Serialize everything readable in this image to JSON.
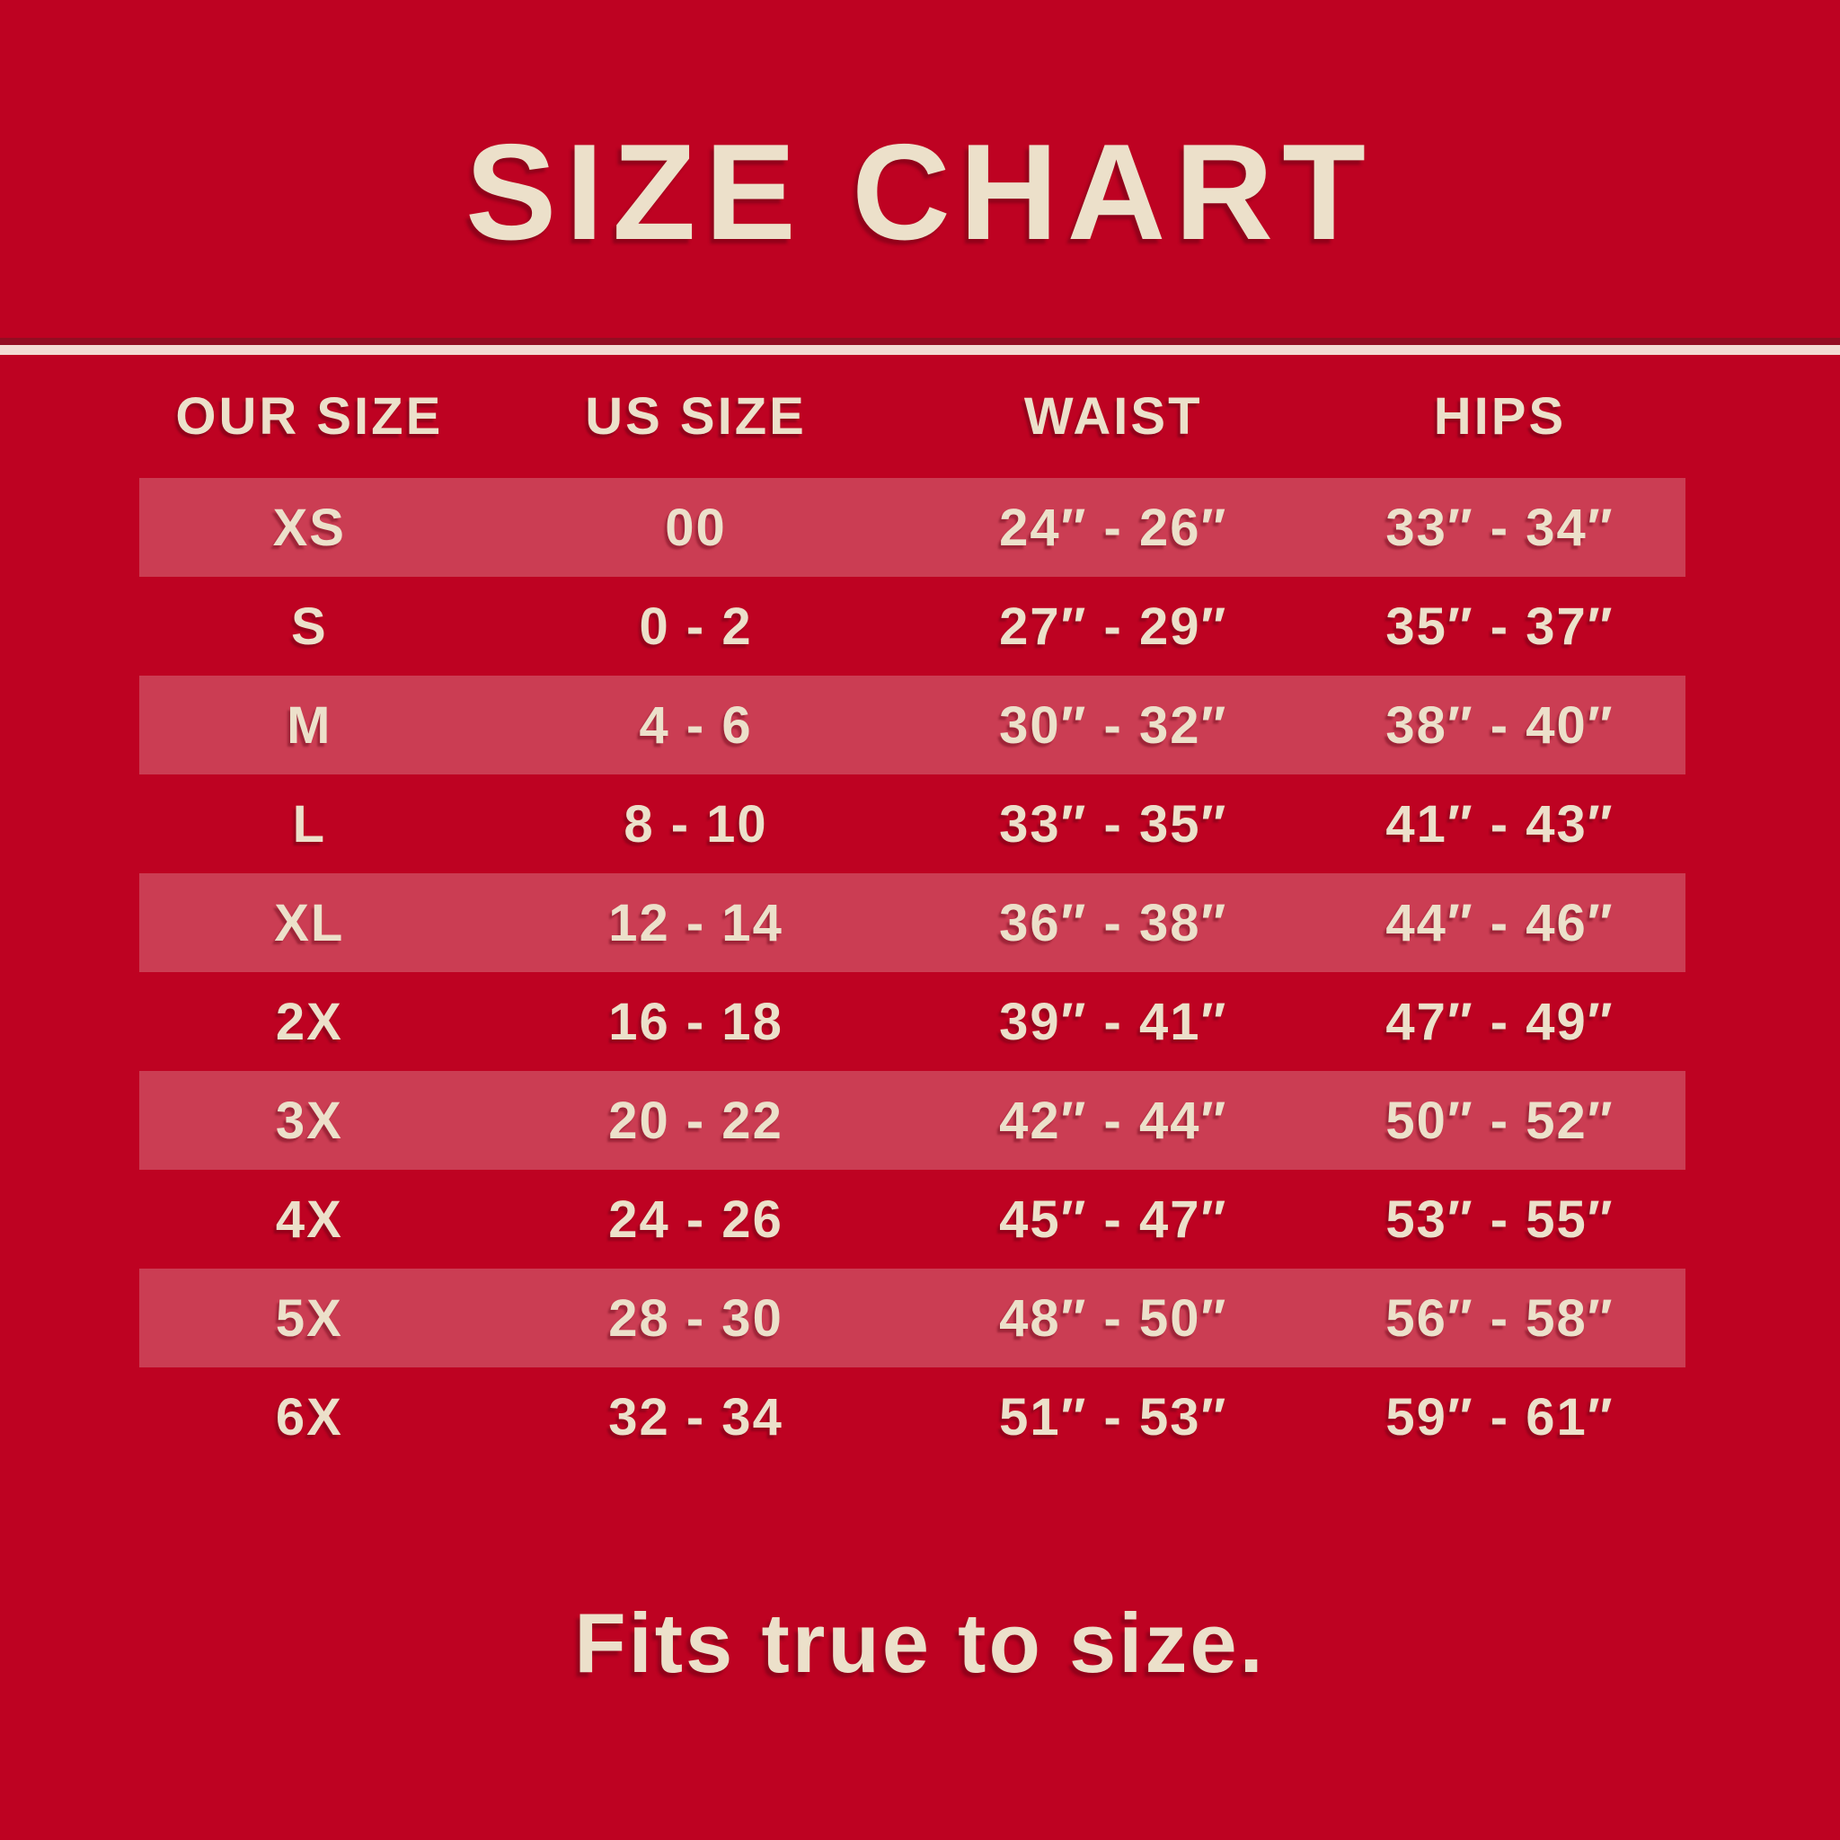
{
  "poster": {
    "title": "SIZE CHART",
    "footer_note": "Fits true to size.",
    "colors": {
      "background": "#BE0222",
      "row_band": "#CB3D53",
      "text_cream": "#ECE0CA",
      "divider_line": "#F3DBD3"
    }
  },
  "chart_data": {
    "type": "table",
    "title": "SIZE CHART",
    "columns": [
      "OUR SIZE",
      "US SIZE",
      "WAIST",
      "HIPS"
    ],
    "rows": [
      [
        "XS",
        "00",
        "24″ - 26″",
        "33″ - 34″"
      ],
      [
        "S",
        "0 - 2",
        "27″ - 29″",
        "35″ - 37″"
      ],
      [
        "M",
        "4 - 6",
        "30″ - 32″",
        "38″ - 40″"
      ],
      [
        "L",
        "8 - 10",
        "33″ - 35″",
        "41″ - 43″"
      ],
      [
        "XL",
        "12 - 14",
        "36″ - 38″",
        "44″ - 46″"
      ],
      [
        "2X",
        "16 - 18",
        "39″ - 41″",
        "47″ - 49″"
      ],
      [
        "3X",
        "20 - 22",
        "42″ - 44″",
        "50″ - 52″"
      ],
      [
        "4X",
        "24 - 26",
        "45″ - 47″",
        "53″ - 55″"
      ],
      [
        "5X",
        "28 - 30",
        "48″ - 50″",
        "56″ - 58″"
      ],
      [
        "6X",
        "32 - 34",
        "51″ - 53″",
        "59″ - 61″"
      ]
    ],
    "banded_row_indices": [
      0,
      2,
      4,
      6,
      8
    ],
    "note": "Fits true to size.",
    "layout": {
      "header_position": "top-center",
      "row_striping": "alternating starting at first data row",
      "grid": "off"
    }
  }
}
